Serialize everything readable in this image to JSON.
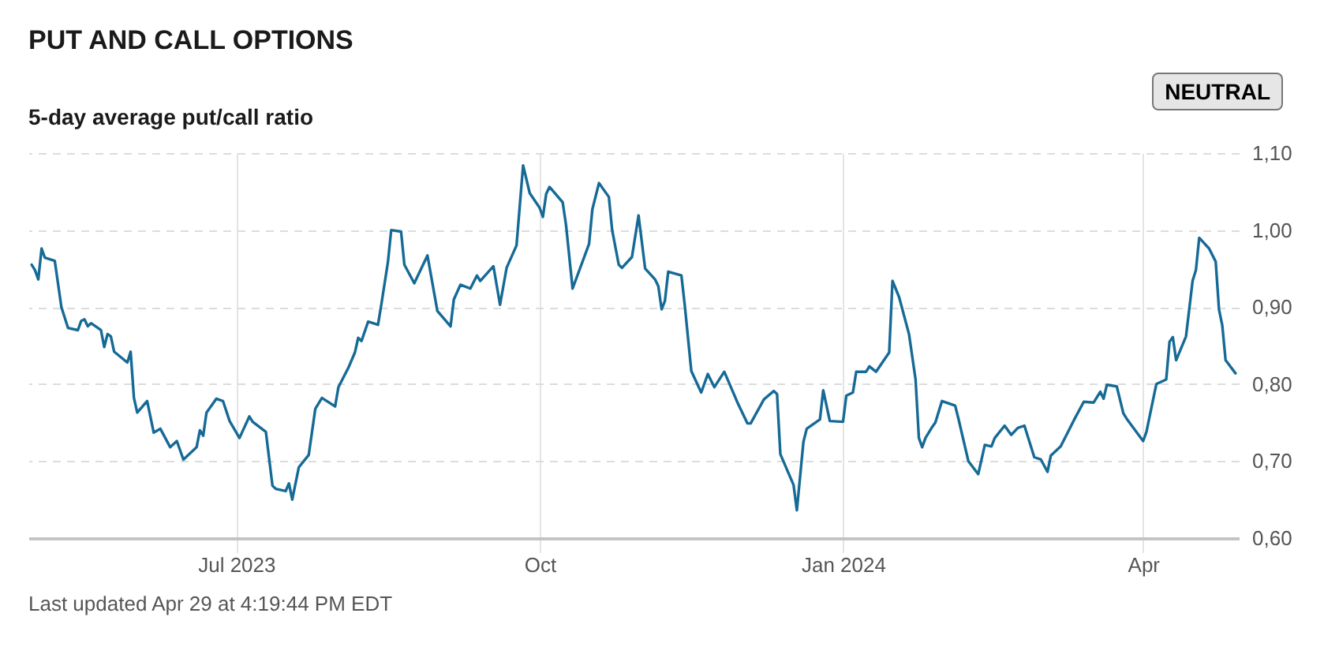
{
  "chart_data": {
    "type": "line",
    "title": "PUT AND CALL OPTIONS",
    "subtitle": "5-day average put/call ratio",
    "annotations": [
      "NEUTRAL",
      "Last updated Apr 29 at 4:19:44 PM EDT"
    ],
    "x": [
      "2023-04-30",
      "2023-05-01",
      "2023-05-02",
      "2023-05-03",
      "2023-05-04",
      "2023-05-07",
      "2023-05-09",
      "2023-05-11",
      "2023-05-14",
      "2023-05-15",
      "2023-05-16",
      "2023-05-17",
      "2023-05-18",
      "2023-05-21",
      "2023-05-22",
      "2023-05-23",
      "2023-05-24",
      "2023-05-25",
      "2023-05-29",
      "2023-05-30",
      "2023-05-31",
      "2023-06-01",
      "2023-06-04",
      "2023-06-06",
      "2023-06-08",
      "2023-06-11",
      "2023-06-13",
      "2023-06-15",
      "2023-06-19",
      "2023-06-20",
      "2023-06-21",
      "2023-06-22",
      "2023-06-25",
      "2023-06-27",
      "2023-06-29",
      "2023-07-02",
      "2023-07-05",
      "2023-07-06",
      "2023-07-10",
      "2023-07-12",
      "2023-07-13",
      "2023-07-16",
      "2023-07-17",
      "2023-07-18",
      "2023-07-20",
      "2023-07-23",
      "2023-07-25",
      "2023-07-27",
      "2023-07-31",
      "2023-08-01",
      "2023-08-04",
      "2023-08-06",
      "2023-08-07",
      "2023-08-08",
      "2023-08-10",
      "2023-08-13",
      "2023-08-14",
      "2023-08-16",
      "2023-08-17",
      "2023-08-20",
      "2023-08-21",
      "2023-08-24",
      "2023-08-28",
      "2023-08-31",
      "2023-09-04",
      "2023-09-05",
      "2023-09-07",
      "2023-09-10",
      "2023-09-12",
      "2023-09-13",
      "2023-09-17",
      "2023-09-19",
      "2023-09-21",
      "2023-09-24",
      "2023-09-26",
      "2023-09-28",
      "2023-10-01",
      "2023-10-02",
      "2023-10-03",
      "2023-10-04",
      "2023-10-08",
      "2023-10-09",
      "2023-10-11",
      "2023-10-16",
      "2023-10-17",
      "2023-10-19",
      "2023-10-22",
      "2023-10-23",
      "2023-10-25",
      "2023-10-26",
      "2023-10-29",
      "2023-10-31",
      "2023-11-02",
      "2023-11-05",
      "2023-11-06",
      "2023-11-07",
      "2023-11-08",
      "2023-11-09",
      "2023-11-13",
      "2023-11-14",
      "2023-11-15",
      "2023-11-16",
      "2023-11-19",
      "2023-11-21",
      "2023-11-23",
      "2023-11-26",
      "2023-11-28",
      "2023-11-30",
      "2023-12-03",
      "2023-12-04",
      "2023-12-08",
      "2023-12-11",
      "2023-12-12",
      "2023-12-13",
      "2023-12-15",
      "2023-12-17",
      "2023-12-18",
      "2023-12-20",
      "2023-12-21",
      "2023-12-25",
      "2023-12-26",
      "2023-12-28",
      "2024-01-01",
      "2024-01-02",
      "2024-01-04",
      "2024-01-05",
      "2024-01-08",
      "2024-01-09",
      "2024-01-11",
      "2024-01-15",
      "2024-01-16",
      "2024-01-18",
      "2024-01-21",
      "2024-01-23",
      "2024-01-24",
      "2024-01-25",
      "2024-01-26",
      "2024-01-28",
      "2024-01-29",
      "2024-01-31",
      "2024-02-04",
      "2024-02-05",
      "2024-02-08",
      "2024-02-11",
      "2024-02-13",
      "2024-02-15",
      "2024-02-16",
      "2024-02-19",
      "2024-02-21",
      "2024-02-23",
      "2024-02-25",
      "2024-02-28",
      "2024-03-01",
      "2024-03-03",
      "2024-03-04",
      "2024-03-07",
      "2024-03-11",
      "2024-03-14",
      "2024-03-17",
      "2024-03-19",
      "2024-03-20",
      "2024-03-21",
      "2024-03-24",
      "2024-03-26",
      "2024-03-27",
      "2024-04-01",
      "2024-04-02",
      "2024-04-05",
      "2024-04-08",
      "2024-04-09",
      "2024-04-10",
      "2024-04-11",
      "2024-04-14",
      "2024-04-16",
      "2024-04-17",
      "2024-04-18",
      "2024-04-21",
      "2024-04-23",
      "2024-04-24",
      "2024-04-25",
      "2024-04-26",
      "2024-04-29"
    ],
    "series": [
      {
        "color": "#166a96",
        "values": [
          0.955,
          0.948,
          0.936,
          0.976,
          0.964,
          0.96,
          0.9,
          0.873,
          0.87,
          0.882,
          0.884,
          0.875,
          0.879,
          0.87,
          0.848,
          0.865,
          0.862,
          0.842,
          0.828,
          0.842,
          0.782,
          0.763,
          0.778,
          0.737,
          0.742,
          0.718,
          0.726,
          0.702,
          0.718,
          0.74,
          0.733,
          0.763,
          0.781,
          0.778,
          0.752,
          0.73,
          0.758,
          0.751,
          0.738,
          0.668,
          0.664,
          0.661,
          0.671,
          0.65,
          0.692,
          0.708,
          0.768,
          0.782,
          0.771,
          0.796,
          0.821,
          0.841,
          0.86,
          0.856,
          0.881,
          0.877,
          0.903,
          0.958,
          1.0,
          0.998,
          0.955,
          0.931,
          0.967,
          0.895,
          0.875,
          0.91,
          0.929,
          0.924,
          0.941,
          0.934,
          0.953,
          0.903,
          0.951,
          0.98,
          1.084,
          1.048,
          1.029,
          1.017,
          1.047,
          1.056,
          1.036,
          1.007,
          0.924,
          0.982,
          1.027,
          1.061,
          1.043,
          1.0,
          0.955,
          0.951,
          0.965,
          1.019,
          0.95,
          0.936,
          0.927,
          0.897,
          0.908,
          0.946,
          0.941,
          0.903,
          0.86,
          0.817,
          0.789,
          0.813,
          0.796,
          0.816,
          0.796,
          0.776,
          0.749,
          0.749,
          0.78,
          0.791,
          0.787,
          0.709,
          0.689,
          0.669,
          0.636,
          0.725,
          0.742,
          0.754,
          0.792,
          0.752,
          0.751,
          0.785,
          0.789,
          0.816,
          0.816,
          0.823,
          0.816,
          0.841,
          0.934,
          0.913,
          0.865,
          0.806,
          0.73,
          0.718,
          0.73,
          0.744,
          0.75,
          0.778,
          0.772,
          0.755,
          0.7,
          0.683,
          0.721,
          0.719,
          0.73,
          0.746,
          0.734,
          0.743,
          0.746,
          0.705,
          0.702,
          0.686,
          0.707,
          0.719,
          0.753,
          0.777,
          0.776,
          0.79,
          0.781,
          0.799,
          0.797,
          0.762,
          0.755,
          0.726,
          0.738,
          0.8,
          0.806,
          0.855,
          0.861,
          0.831,
          0.862,
          0.934,
          0.948,
          0.99,
          0.976,
          0.959,
          0.897,
          0.876,
          0.831,
          0.814
        ]
      }
    ],
    "xlim": [
      "2023-04-29",
      "2024-04-30"
    ],
    "xticks": [
      {
        "value": "2023-07-01",
        "label": "Jul 2023"
      },
      {
        "value": "2023-10-01",
        "label": "Oct"
      },
      {
        "value": "2024-01-01",
        "label": "Jan 2024"
      },
      {
        "value": "2024-04-01",
        "label": "Apr"
      }
    ],
    "ylim": [
      0.6,
      1.1
    ],
    "yticks": [
      {
        "value": 0.6,
        "label": "0,60"
      },
      {
        "value": 0.7,
        "label": "0,70"
      },
      {
        "value": 0.8,
        "label": "0,80"
      },
      {
        "value": 0.9,
        "label": "0,90"
      },
      {
        "value": 1.0,
        "label": "1,00"
      },
      {
        "value": 1.1,
        "label": "1,10"
      }
    ],
    "grid": true
  }
}
